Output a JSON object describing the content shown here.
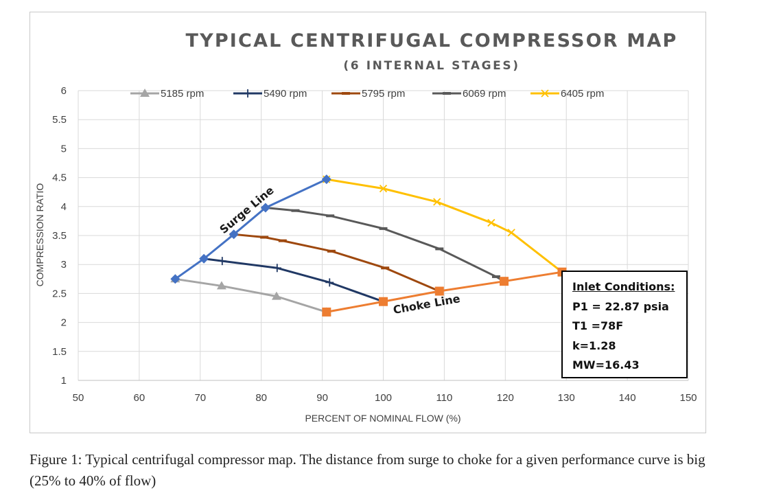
{
  "chart_data": {
    "type": "line",
    "title": "TYPICAL CENTRIFUGAL COMPRESSOR MAP",
    "subtitle": "(6 INTERNAL STAGES)",
    "xlabel": "PERCENT OF NOMINAL FLOW (%)",
    "ylabel": "COMPRESSION RATIO",
    "xlim": [
      50,
      150
    ],
    "ylim": [
      1,
      6
    ],
    "xticks": [
      "50",
      "60",
      "70",
      "80",
      "90",
      "100",
      "110",
      "120",
      "130",
      "140",
      "150"
    ],
    "yticks": [
      "1",
      "1.5",
      "2",
      "2.5",
      "3",
      "3.5",
      "4",
      "4.5",
      "5",
      "5.5",
      "6"
    ],
    "grid": true,
    "legend_position": "top",
    "series": [
      {
        "name": "5185 rpm",
        "color": "#a5a5a5",
        "marker": "triangle",
        "x": [
          65.9,
          73.5,
          82.5,
          90.7
        ],
        "y": [
          2.75,
          2.63,
          2.45,
          2.18
        ]
      },
      {
        "name": "5490 rpm",
        "color": "#203864",
        "marker": "plus",
        "x": [
          70.6,
          73.6,
          82.6,
          91.2,
          100.0
        ],
        "y": [
          3.1,
          3.06,
          2.94,
          2.69,
          2.36
        ]
      },
      {
        "name": "5795 rpm",
        "color": "#9e480e",
        "marker": "dash",
        "x": [
          75.5,
          80.5,
          83.5,
          91.5,
          100.3,
          109.2
        ],
        "y": [
          3.52,
          3.47,
          3.41,
          3.23,
          2.94,
          2.54
        ]
      },
      {
        "name": "6069 rpm",
        "color": "#595959",
        "marker": "dash",
        "x": [
          80.7,
          85.6,
          91.3,
          100.0,
          109.2,
          118.5,
          119.8
        ],
        "y": [
          3.98,
          3.93,
          3.84,
          3.62,
          3.27,
          2.79,
          2.71
        ]
      },
      {
        "name": "6405 rpm",
        "color": "#ffc000",
        "marker": "x",
        "x": [
          90.7,
          100.0,
          108.8,
          117.7,
          121.0,
          129.3
        ],
        "y": [
          4.47,
          4.31,
          4.08,
          3.72,
          3.55,
          2.87
        ]
      }
    ],
    "surge_line": {
      "label": "Surge Line",
      "color": "#4472c4",
      "marker": "diamond",
      "x": [
        65.9,
        70.6,
        75.5,
        80.7,
        90.7
      ],
      "y": [
        2.75,
        3.1,
        3.52,
        3.98,
        4.47
      ]
    },
    "choke_line": {
      "label": "Choke Line",
      "color": "#ed7d31",
      "marker": "square",
      "x": [
        90.7,
        100.0,
        109.2,
        119.8,
        129.3
      ],
      "y": [
        2.18,
        2.36,
        2.54,
        2.71,
        2.87
      ]
    },
    "inlet_conditions": {
      "heading": "Inlet Conditions:",
      "lines": [
        "P1 = 22.87 psia",
        "T1 =78F",
        "k=1.28",
        "MW=16.43"
      ]
    }
  },
  "caption": "Figure 1: Typical centrifugal compressor map. The distance from surge to choke for a given performance curve is big (25% to 40% of flow)"
}
